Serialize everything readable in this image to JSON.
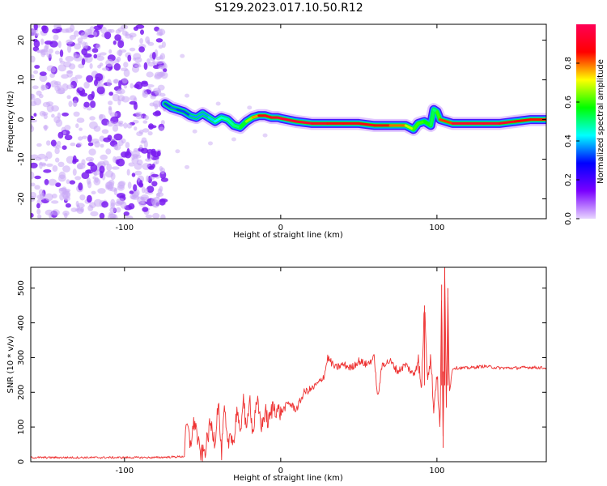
{
  "title": "S129.2023.017.10.50.R12",
  "chart_data": [
    {
      "type": "heatmap",
      "xlabel": "Height of straight line (km)",
      "ylabel": "Frequency (Hz)",
      "xlim": [
        -160,
        170
      ],
      "ylim": [
        -25,
        24
      ],
      "x_ticks": [
        -100,
        0,
        100
      ],
      "y_ticks": [
        -20,
        -10,
        0,
        10,
        20
      ],
      "colorbar": {
        "label": "Normalized spectral amplitude",
        "range": [
          0,
          1
        ],
        "ticks": [
          "0.0",
          "0.2",
          "0.4",
          "0.6",
          "0.8"
        ],
        "colormap": [
          "#e8d5ff",
          "#7a00ff",
          "#0000ff",
          "#00ffff",
          "#00ff00",
          "#ffff00",
          "#ff0000",
          "#ff0055"
        ]
      },
      "noise_region": {
        "x_range": [
          -160,
          -74
        ],
        "freq_range": [
          -25,
          24
        ],
        "amplitude": 0.2
      },
      "ridge": {
        "x": [
          -74,
          -70,
          -66,
          -62,
          -58,
          -54,
          -50,
          -46,
          -42,
          -38,
          -34,
          -30,
          -26,
          -22,
          -18,
          -14,
          -10,
          -6,
          -2,
          0,
          10,
          20,
          30,
          40,
          50,
          60,
          70,
          80,
          85,
          88,
          92,
          96,
          98,
          100,
          102,
          110,
          120,
          130,
          140,
          150,
          160,
          170
        ],
        "freq": [
          4,
          3,
          2.5,
          2,
          1,
          0.5,
          1.5,
          0.5,
          -0.5,
          0.5,
          0,
          -1.5,
          -2,
          -0.5,
          0.5,
          1,
          1,
          0.5,
          0.5,
          0.3,
          -0.5,
          -1,
          -1,
          -1,
          -1,
          -1.5,
          -1.5,
          -1.5,
          -2.5,
          -1,
          -0.5,
          -1.5,
          2.5,
          2,
          0,
          -1,
          -1,
          -1,
          -1,
          -0.5,
          0,
          0
        ],
        "amplitude": [
          0.3,
          0.35,
          0.35,
          0.3,
          0.35,
          0.4,
          0.35,
          0.4,
          0.4,
          0.45,
          0.45,
          0.5,
          0.5,
          0.6,
          0.7,
          0.85,
          0.9,
          0.9,
          0.95,
          0.95,
          0.95,
          0.95,
          0.9,
          0.9,
          0.9,
          0.9,
          0.85,
          0.75,
          0.6,
          0.6,
          0.6,
          0.55,
          0.5,
          0.5,
          0.7,
          0.95,
          0.95,
          0.95,
          0.95,
          0.9,
          0.85,
          0.85
        ]
      }
    },
    {
      "type": "line",
      "xlabel": "Height of straight line (km)",
      "ylabel": "SNR (10 * v/v)",
      "xlim": [
        -160,
        170
      ],
      "ylim": [
        0,
        560
      ],
      "x_ticks": [
        -100,
        0,
        100
      ],
      "y_ticks": [
        0,
        100,
        200,
        300,
        400,
        500
      ],
      "color": "#ee3333",
      "series": [
        {
          "x": [
            -160,
            -120,
            -80,
            -62,
            -60,
            -58,
            -55,
            -52,
            -50,
            -48,
            -45,
            -42,
            -40,
            -38,
            -36,
            -34,
            -32,
            -30,
            -28,
            -26,
            -24,
            -22,
            -20,
            -18,
            -15,
            -12,
            -10,
            -8,
            -5,
            0,
            5,
            10,
            15,
            20,
            25,
            28,
            30,
            35,
            40,
            45,
            50,
            55,
            60,
            62,
            65,
            70,
            75,
            80,
            85,
            88,
            90,
            92,
            94,
            96,
            98,
            100,
            102,
            103,
            104,
            105,
            106,
            107,
            108,
            110,
            120,
            130,
            140,
            150,
            160,
            170
          ],
          "y": [
            12,
            12,
            12,
            15,
            110,
            50,
            120,
            30,
            20,
            40,
            110,
            60,
            180,
            20,
            150,
            40,
            90,
            50,
            160,
            60,
            200,
            70,
            200,
            80,
            170,
            100,
            150,
            110,
            160,
            140,
            170,
            150,
            200,
            210,
            230,
            250,
            300,
            270,
            280,
            270,
            290,
            280,
            300,
            180,
            280,
            290,
            260,
            280,
            250,
            300,
            200,
            450,
            250,
            300,
            150,
            260,
            80,
            510,
            40,
            560,
            150,
            500,
            200,
            270,
            270,
            275,
            270,
            270,
            272,
            270
          ]
        }
      ]
    }
  ]
}
